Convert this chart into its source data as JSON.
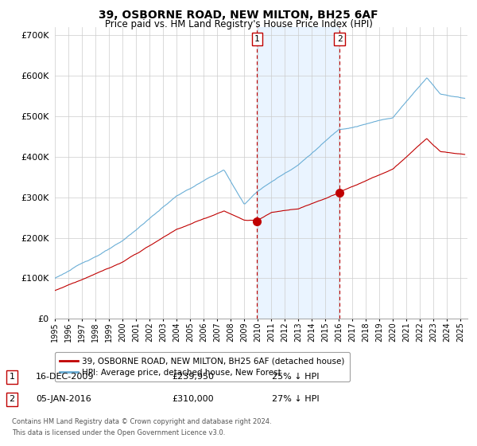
{
  "title": "39, OSBORNE ROAD, NEW MILTON, BH25 6AF",
  "subtitle": "Price paid vs. HM Land Registry's House Price Index (HPI)",
  "ylabel_ticks": [
    "£0",
    "£100K",
    "£200K",
    "£300K",
    "£400K",
    "£500K",
    "£600K",
    "£700K"
  ],
  "ytick_values": [
    0,
    100000,
    200000,
    300000,
    400000,
    500000,
    600000,
    700000
  ],
  "ylim": [
    0,
    720000
  ],
  "xlim_start": 1995.0,
  "xlim_end": 2025.5,
  "hpi_color": "#6aaed6",
  "price_color": "#c00000",
  "background_shading_color": "#ddeeff",
  "shading_x_start": 2009.95,
  "shading_x_end": 2016.05,
  "marker1_x": 2009.95,
  "marker1_y": 239950,
  "marker1_label": "1",
  "marker1_date": "16-DEC-2009",
  "marker1_price": "£239,950",
  "marker1_pct": "25% ↓ HPI",
  "marker2_x": 2016.05,
  "marker2_y": 310000,
  "marker2_label": "2",
  "marker2_date": "05-JAN-2016",
  "marker2_price": "£310,000",
  "marker2_pct": "27% ↓ HPI",
  "legend_line1": "39, OSBORNE ROAD, NEW MILTON, BH25 6AF (detached house)",
  "legend_line2": "HPI: Average price, detached house, New Forest",
  "footer_line1": "Contains HM Land Registry data © Crown copyright and database right 2024.",
  "footer_line2": "This data is licensed under the Open Government Licence v3.0."
}
